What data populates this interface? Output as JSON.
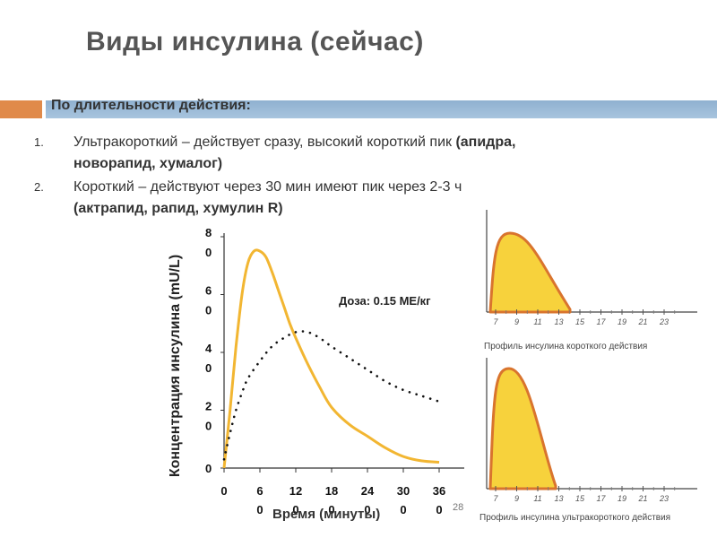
{
  "slide": {
    "title": "Виды инсулина (сейчас)",
    "section_header": "По длительности действия:",
    "page_number": "28",
    "items": [
      {
        "num": "1.",
        "line1_plain": "Ультракороткий – действует сразу, высокий короткий пик ",
        "line1_bold": "(апидра,",
        "line2_bold": "новорапид, хумалог)"
      },
      {
        "num": "2.",
        "line1_plain": "Короткий – действуют через 30 мин имеют пик через 2-3 ч",
        "line2_bold": "(актрапид, рапид, хумулин R)"
      }
    ]
  },
  "main_chart": {
    "dose_label": "Доза: 0.15 МЕ/кг"
  },
  "chart_data": [
    {
      "type": "line",
      "ylabel": "Концентрация инсулина (mU/L)",
      "xlabel": "Время (минуты)",
      "annotation": "Доза: 0.15 МЕ/кг",
      "xlim": [
        0,
        360
      ],
      "ylim": [
        0,
        80
      ],
      "y_ticks": [
        {
          "value": 0,
          "label": [
            "0"
          ]
        },
        {
          "value": 20,
          "label": [
            "2",
            "0"
          ]
        },
        {
          "value": 40,
          "label": [
            "4",
            "0"
          ]
        },
        {
          "value": 60,
          "label": [
            "6",
            "0"
          ]
        },
        {
          "value": 80,
          "label": [
            "8",
            "0"
          ]
        }
      ],
      "x_ticks": [
        {
          "value": 0,
          "label": [
            "0"
          ]
        },
        {
          "value": 60,
          "label": [
            "6",
            "0"
          ]
        },
        {
          "value": 120,
          "label": [
            "12",
            "0"
          ]
        },
        {
          "value": 180,
          "label": [
            "18",
            "0"
          ]
        },
        {
          "value": 240,
          "label": [
            "24",
            "0"
          ]
        },
        {
          "value": 300,
          "label": [
            "30",
            "0"
          ]
        },
        {
          "value": 360,
          "label": [
            "36",
            "0"
          ]
        }
      ],
      "series": [
        {
          "style": "solid",
          "color": "#f2b632",
          "x": [
            0,
            10,
            20,
            30,
            40,
            50,
            60,
            70,
            80,
            90,
            100,
            110,
            120,
            140,
            160,
            180,
            210,
            240,
            270,
            300,
            330,
            360
          ],
          "y": [
            0,
            20,
            42,
            60,
            71,
            75,
            75,
            73,
            68,
            62,
            56,
            50,
            45,
            36,
            28,
            21,
            15,
            11,
            7,
            4,
            2.5,
            2
          ]
        },
        {
          "style": "dotted",
          "color": "#111111",
          "x": [
            0,
            10,
            20,
            30,
            40,
            60,
            80,
            100,
            120,
            140,
            160,
            180,
            210,
            240,
            270,
            300,
            330,
            360
          ],
          "y": [
            3,
            12,
            20,
            26,
            31,
            37,
            42,
            45,
            47,
            47,
            45,
            42,
            38,
            34,
            30,
            27,
            25,
            23
          ]
        }
      ]
    },
    {
      "type": "area",
      "caption": "Профиль инсулина короткого действия",
      "x_ticks": [
        "7",
        "9",
        "11",
        "13",
        "15",
        "17",
        "19",
        "21",
        "23"
      ],
      "fill_color": "#f7d23c",
      "line_color": "#d9742e"
    },
    {
      "type": "area",
      "caption": "Профиль инсулина ультракороткого действия",
      "x_ticks": [
        "7",
        "9",
        "11",
        "13",
        "15",
        "17",
        "19",
        "21",
        "23"
      ],
      "fill_color": "#f7d23c",
      "line_color": "#d9742e"
    }
  ]
}
